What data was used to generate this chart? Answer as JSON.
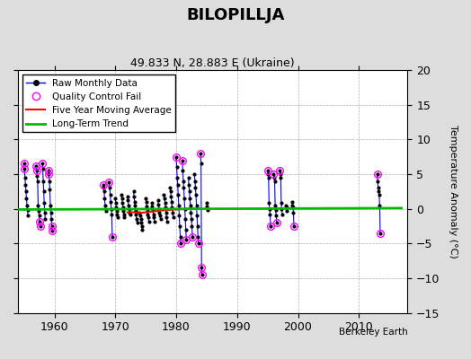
{
  "title": "BILOPILLJA",
  "subtitle": "49.833 N, 28.883 E (Ukraine)",
  "ylabel": "Temperature Anomaly (°C)",
  "attribution": "Berkeley Earth",
  "xlim": [
    1954,
    2018
  ],
  "ylim": [
    -15,
    20
  ],
  "yticks": [
    -15,
    -10,
    -5,
    0,
    5,
    10,
    15,
    20
  ],
  "xticks": [
    1960,
    1970,
    1980,
    1990,
    2000,
    2010
  ],
  "bg_color": "#dddddd",
  "plot_bg_color": "#ffffff",
  "raw_color": "#0000ff",
  "qc_color": "#ff00ff",
  "moving_avg_color": "#ff0000",
  "trend_color": "#00bb00",
  "raw_monthly_data": [
    [
      1955.0,
      6.5
    ],
    [
      1955.08,
      5.8
    ],
    [
      1955.17,
      4.5
    ],
    [
      1955.25,
      3.5
    ],
    [
      1955.33,
      2.5
    ],
    [
      1955.42,
      1.5
    ],
    [
      1955.5,
      0.5
    ],
    [
      1955.58,
      -0.2
    ],
    [
      1955.67,
      -1.0
    ],
    [
      1957.0,
      6.2
    ],
    [
      1957.08,
      5.5
    ],
    [
      1957.17,
      4.8
    ],
    [
      1957.25,
      4.0
    ],
    [
      1957.33,
      0.5
    ],
    [
      1957.42,
      -0.3
    ],
    [
      1957.5,
      -1.0
    ],
    [
      1957.58,
      -1.8
    ],
    [
      1957.67,
      -2.5
    ],
    [
      1958.0,
      6.5
    ],
    [
      1958.08,
      5.8
    ],
    [
      1958.17,
      4.0
    ],
    [
      1958.25,
      2.5
    ],
    [
      1958.33,
      0.8
    ],
    [
      1958.42,
      -0.5
    ],
    [
      1958.5,
      -1.5
    ],
    [
      1959.0,
      5.5
    ],
    [
      1959.08,
      5.0
    ],
    [
      1959.17,
      4.0
    ],
    [
      1959.25,
      2.8
    ],
    [
      1959.33,
      0.5
    ],
    [
      1959.42,
      -0.5
    ],
    [
      1959.5,
      -1.5
    ],
    [
      1959.58,
      -2.5
    ],
    [
      1959.67,
      -3.2
    ],
    [
      1968.0,
      3.5
    ],
    [
      1968.08,
      3.0
    ],
    [
      1968.17,
      2.5
    ],
    [
      1968.25,
      1.5
    ],
    [
      1968.33,
      0.5
    ],
    [
      1968.42,
      -0.3
    ],
    [
      1969.0,
      3.8
    ],
    [
      1969.08,
      3.0
    ],
    [
      1969.17,
      2.0
    ],
    [
      1969.25,
      1.0
    ],
    [
      1969.33,
      0.0
    ],
    [
      1969.42,
      -0.8
    ],
    [
      1969.5,
      -4.0
    ],
    [
      1970.0,
      1.5
    ],
    [
      1970.08,
      0.8
    ],
    [
      1970.17,
      0.2
    ],
    [
      1970.25,
      -0.3
    ],
    [
      1970.33,
      -0.8
    ],
    [
      1970.42,
      -1.2
    ],
    [
      1971.0,
      2.0
    ],
    [
      1971.08,
      1.5
    ],
    [
      1971.17,
      0.8
    ],
    [
      1971.25,
      0.2
    ],
    [
      1971.33,
      -0.3
    ],
    [
      1971.42,
      -0.8
    ],
    [
      1971.5,
      -1.2
    ],
    [
      1972.0,
      1.8
    ],
    [
      1972.08,
      1.2
    ],
    [
      1972.17,
      0.5
    ],
    [
      1972.25,
      0.0
    ],
    [
      1972.33,
      -0.5
    ],
    [
      1972.42,
      -0.8
    ],
    [
      1973.0,
      2.5
    ],
    [
      1973.08,
      1.8
    ],
    [
      1973.17,
      1.0
    ],
    [
      1973.25,
      0.5
    ],
    [
      1973.33,
      -0.3
    ],
    [
      1973.42,
      -0.8
    ],
    [
      1973.5,
      -1.5
    ],
    [
      1973.58,
      -2.0
    ],
    [
      1974.0,
      -0.5
    ],
    [
      1974.08,
      -1.0
    ],
    [
      1974.17,
      -1.5
    ],
    [
      1974.25,
      -2.0
    ],
    [
      1974.33,
      -2.5
    ],
    [
      1974.42,
      -3.0
    ],
    [
      1975.0,
      1.5
    ],
    [
      1975.08,
      1.0
    ],
    [
      1975.17,
      0.3
    ],
    [
      1975.25,
      -0.3
    ],
    [
      1975.33,
      -0.8
    ],
    [
      1975.42,
      -1.2
    ],
    [
      1975.5,
      -1.8
    ],
    [
      1976.0,
      0.8
    ],
    [
      1976.08,
      0.3
    ],
    [
      1976.17,
      -0.2
    ],
    [
      1976.25,
      -0.8
    ],
    [
      1976.33,
      -1.2
    ],
    [
      1976.42,
      -1.8
    ],
    [
      1977.0,
      1.2
    ],
    [
      1977.08,
      0.6
    ],
    [
      1977.17,
      0.0
    ],
    [
      1977.25,
      -0.5
    ],
    [
      1977.33,
      -1.0
    ],
    [
      1977.42,
      -1.5
    ],
    [
      1978.0,
      2.0
    ],
    [
      1978.08,
      1.5
    ],
    [
      1978.17,
      0.8
    ],
    [
      1978.25,
      0.2
    ],
    [
      1978.33,
      -0.5
    ],
    [
      1978.42,
      -1.2
    ],
    [
      1978.5,
      -1.8
    ],
    [
      1979.0,
      3.0
    ],
    [
      1979.08,
      2.5
    ],
    [
      1979.17,
      1.8
    ],
    [
      1979.25,
      1.0
    ],
    [
      1979.33,
      0.2
    ],
    [
      1979.42,
      -0.5
    ],
    [
      1979.5,
      -1.2
    ],
    [
      1980.0,
      7.5
    ],
    [
      1980.08,
      6.0
    ],
    [
      1980.17,
      4.5
    ],
    [
      1980.25,
      3.5
    ],
    [
      1980.33,
      2.0
    ],
    [
      1980.42,
      0.5
    ],
    [
      1980.5,
      -1.0
    ],
    [
      1980.58,
      -2.5
    ],
    [
      1980.67,
      -4.0
    ],
    [
      1980.75,
      -5.0
    ],
    [
      1981.0,
      7.0
    ],
    [
      1981.08,
      5.5
    ],
    [
      1981.17,
      4.0
    ],
    [
      1981.25,
      3.0
    ],
    [
      1981.33,
      1.5
    ],
    [
      1981.42,
      0.0
    ],
    [
      1981.5,
      -1.5
    ],
    [
      1981.58,
      -3.0
    ],
    [
      1981.67,
      -4.5
    ],
    [
      1982.0,
      4.5
    ],
    [
      1982.08,
      3.5
    ],
    [
      1982.17,
      2.5
    ],
    [
      1982.25,
      1.5
    ],
    [
      1982.33,
      0.5
    ],
    [
      1982.42,
      -0.5
    ],
    [
      1982.5,
      -1.5
    ],
    [
      1982.58,
      -2.5
    ],
    [
      1982.67,
      -4.0
    ],
    [
      1983.0,
      5.0
    ],
    [
      1983.08,
      4.0
    ],
    [
      1983.17,
      3.0
    ],
    [
      1983.25,
      2.0
    ],
    [
      1983.33,
      0.5
    ],
    [
      1983.42,
      -1.0
    ],
    [
      1983.5,
      -2.5
    ],
    [
      1983.58,
      -4.0
    ],
    [
      1983.67,
      -5.0
    ],
    [
      1984.0,
      8.0
    ],
    [
      1984.08,
      6.5
    ],
    [
      1984.17,
      -8.5
    ],
    [
      1984.25,
      -9.5
    ],
    [
      1985.0,
      0.8
    ],
    [
      1985.08,
      0.3
    ],
    [
      1985.17,
      -0.2
    ],
    [
      1995.0,
      5.5
    ],
    [
      1995.08,
      5.0
    ],
    [
      1995.17,
      4.5
    ],
    [
      1995.25,
      0.8
    ],
    [
      1995.33,
      0.0
    ],
    [
      1995.42,
      -0.8
    ],
    [
      1995.5,
      -2.5
    ],
    [
      1996.0,
      5.0
    ],
    [
      1996.08,
      4.5
    ],
    [
      1996.17,
      4.0
    ],
    [
      1996.25,
      0.5
    ],
    [
      1996.33,
      -0.2
    ],
    [
      1996.42,
      -1.0
    ],
    [
      1996.5,
      -2.0
    ],
    [
      1997.0,
      5.5
    ],
    [
      1997.08,
      5.0
    ],
    [
      1997.17,
      4.5
    ],
    [
      1997.25,
      0.8
    ],
    [
      1997.33,
      0.0
    ],
    [
      1997.42,
      -0.8
    ],
    [
      1998.0,
      0.5
    ],
    [
      1998.08,
      0.2
    ],
    [
      1998.17,
      -0.3
    ],
    [
      1999.0,
      1.0
    ],
    [
      1999.08,
      0.5
    ],
    [
      1999.17,
      0.2
    ],
    [
      1999.25,
      -0.5
    ],
    [
      1999.33,
      -2.5
    ],
    [
      2013.0,
      5.0
    ],
    [
      2013.08,
      4.0
    ],
    [
      2013.17,
      3.0
    ],
    [
      2013.25,
      2.5
    ],
    [
      2013.33,
      2.0
    ],
    [
      2013.42,
      0.5
    ],
    [
      2013.5,
      -3.5
    ]
  ],
  "qc_fail_points": [
    [
      1955.0,
      6.5
    ],
    [
      1955.08,
      5.8
    ],
    [
      1957.0,
      6.2
    ],
    [
      1957.08,
      5.5
    ],
    [
      1957.58,
      -1.8
    ],
    [
      1957.67,
      -2.5
    ],
    [
      1958.0,
      6.5
    ],
    [
      1959.0,
      5.5
    ],
    [
      1959.08,
      5.0
    ],
    [
      1959.58,
      -2.5
    ],
    [
      1959.67,
      -3.2
    ],
    [
      1968.0,
      3.5
    ],
    [
      1969.0,
      3.8
    ],
    [
      1969.5,
      -4.0
    ],
    [
      1980.0,
      7.5
    ],
    [
      1980.75,
      -5.0
    ],
    [
      1981.0,
      7.0
    ],
    [
      1981.67,
      -4.5
    ],
    [
      1982.67,
      -4.0
    ],
    [
      1983.67,
      -5.0
    ],
    [
      1984.0,
      8.0
    ],
    [
      1984.17,
      -8.5
    ],
    [
      1984.25,
      -9.5
    ],
    [
      1995.0,
      5.5
    ],
    [
      1995.5,
      -2.5
    ],
    [
      1996.0,
      5.0
    ],
    [
      1996.5,
      -2.0
    ],
    [
      1997.0,
      5.5
    ],
    [
      1999.33,
      -2.5
    ],
    [
      2013.0,
      5.0
    ],
    [
      2013.5,
      -3.5
    ]
  ],
  "moving_avg_data": [
    [
      1972.0,
      -0.5
    ],
    [
      1973.0,
      -0.5
    ],
    [
      1974.0,
      -0.6
    ],
    [
      1975.0,
      -0.5
    ],
    [
      1976.0,
      -0.4
    ],
    [
      1977.0,
      -0.3
    ],
    [
      1978.0,
      -0.2
    ],
    [
      1979.0,
      -0.15
    ],
    [
      1980.0,
      -0.1
    ],
    [
      1981.0,
      -0.05
    ],
    [
      1982.0,
      0.0
    ],
    [
      1983.0,
      0.05
    ],
    [
      1984.0,
      0.0
    ]
  ],
  "trend_x": [
    1954,
    2017
  ],
  "trend_y": [
    -0.1,
    0.1
  ]
}
